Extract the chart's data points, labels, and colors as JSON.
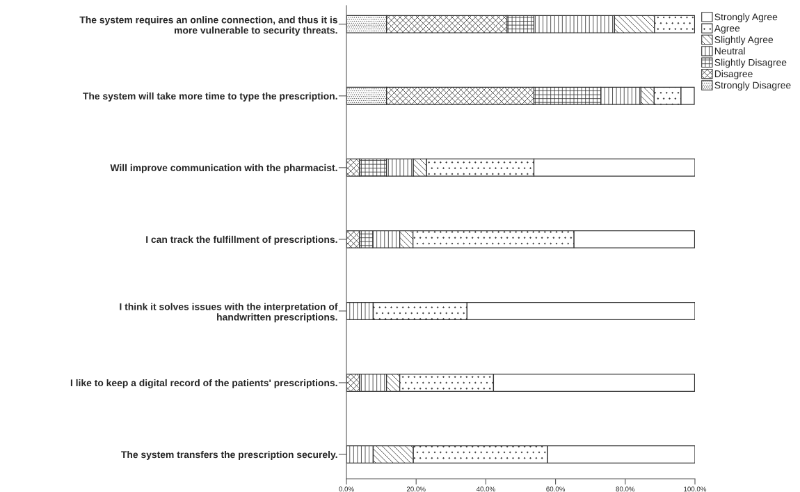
{
  "chart_data": {
    "type": "bar",
    "orientation": "horizontal",
    "stacked": true,
    "categories": [
      "The system requires an online connection, and thus it is\nmore vulnerable to security threats.",
      "The system will take more time to type the prescription.",
      "Will improve communication with the pharmacist.",
      "I can track the fulfillment of prescriptions.",
      "I think it solves issues with the interpretation of\nhandwritten prescriptions.",
      "I like to keep a digital record of the patients' prescriptions.",
      "The system transfers the prescription securely."
    ],
    "series": [
      {
        "name": "Strongly Disagree",
        "color": "#333333",
        "values": [
          11.5,
          11.5,
          0,
          0,
          0,
          0,
          0
        ]
      },
      {
        "name": "Disagree",
        "color": "#333333",
        "values": [
          34.6,
          42.3,
          3.8,
          3.8,
          0,
          3.8,
          0
        ]
      },
      {
        "name": "Slightly Disagree",
        "color": "#333333",
        "values": [
          7.7,
          19.2,
          7.7,
          3.8,
          0,
          0,
          0
        ]
      },
      {
        "name": "Neutral",
        "color": "#333333",
        "values": [
          23.1,
          11.5,
          7.7,
          7.7,
          7.7,
          7.7,
          7.7
        ]
      },
      {
        "name": "Slightly Agree",
        "color": "#333333",
        "values": [
          11.5,
          3.8,
          3.8,
          3.8,
          0,
          3.8,
          11.5
        ]
      },
      {
        "name": "Agree",
        "color": "#333333",
        "values": [
          11.5,
          7.7,
          30.8,
          46.2,
          26.9,
          26.9,
          38.5
        ]
      },
      {
        "name": "Strongly Agree",
        "color": "#333333",
        "values": [
          0,
          3.8,
          46.2,
          34.6,
          65.4,
          57.7,
          42.3
        ]
      }
    ],
    "xlim": [
      0,
      100
    ],
    "xticks": [
      {
        "value": 0,
        "label": "0.0%"
      },
      {
        "value": 20,
        "label": "20.0%"
      },
      {
        "value": 40,
        "label": "40.0%"
      },
      {
        "value": 60,
        "label": "60.0%"
      },
      {
        "value": 80,
        "label": "80.0%"
      },
      {
        "value": 100,
        "label": "100.0%"
      }
    ],
    "grid": false,
    "legend": "top right"
  }
}
